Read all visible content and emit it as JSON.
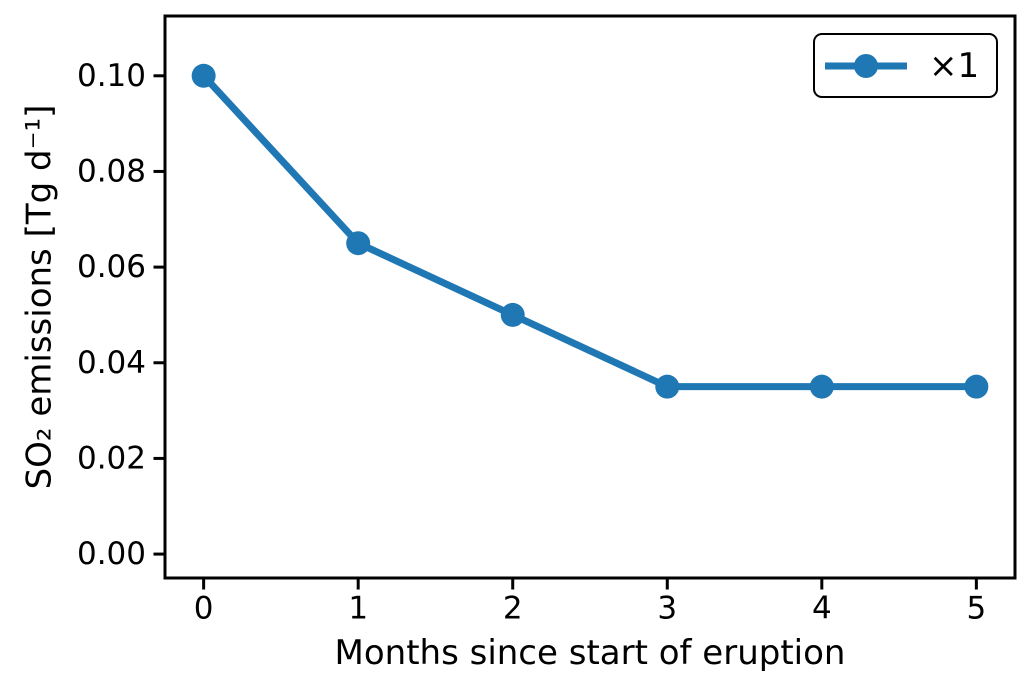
{
  "figure": {
    "background_color": "#ffffff",
    "axis_color": "#000000",
    "text_color": "#000000"
  },
  "chart_data": {
    "type": "line",
    "title": "",
    "xlabel": "Months since start of eruption",
    "ylabel": "SO₂ emissions [Tg d⁻¹]",
    "x": [
      0,
      1,
      2,
      3,
      4,
      5
    ],
    "series": [
      {
        "name": "×1",
        "values": [
          0.1,
          0.065,
          0.05,
          0.035,
          0.035,
          0.035
        ],
        "color": "#1f77b4",
        "marker": "circle",
        "line_width": 7,
        "marker_radius": 12
      }
    ],
    "xticks": {
      "values": [
        0,
        1,
        2,
        3,
        4,
        5
      ],
      "labels": [
        "0",
        "1",
        "2",
        "3",
        "4",
        "5"
      ]
    },
    "yticks": {
      "values": [
        0,
        0.02,
        0.04,
        0.06,
        0.08,
        0.1
      ],
      "labels": [
        "0.00",
        "0.02",
        "0.04",
        "0.06",
        "0.08",
        "0.10"
      ]
    },
    "xlim": [
      -0.25,
      5.25
    ],
    "ylim": [
      -0.005,
      0.1125
    ],
    "grid": false,
    "legend": {
      "position": "upper right",
      "entries": [
        "×1"
      ]
    }
  }
}
